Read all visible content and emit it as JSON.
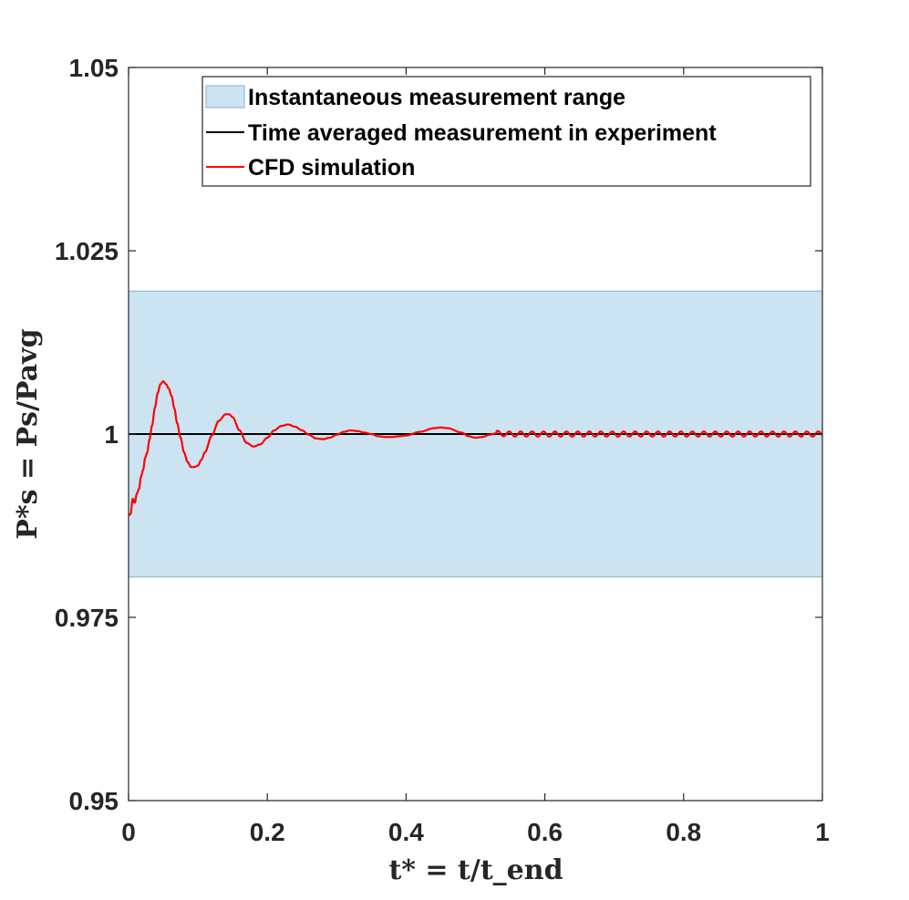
{
  "chart_data": {
    "type": "line",
    "xlabel": "t* = t/t_end",
    "ylabel": "P*s = Ps/Pavg",
    "xlim": [
      0,
      1
    ],
    "ylim": [
      0.95,
      1.05
    ],
    "x_ticks": [
      0,
      0.2,
      0.4,
      0.6,
      0.8,
      1
    ],
    "x_tick_labels": [
      "0",
      "0.2",
      "0.4",
      "0.6",
      "0.8",
      "1"
    ],
    "y_ticks": [
      0.95,
      0.975,
      1,
      1.025,
      1.05
    ],
    "y_tick_labels": [
      "0.95",
      "0.975",
      "1",
      "1.025",
      "1.05"
    ],
    "grid": false,
    "legend_position": "top-right",
    "measurement_band": {
      "name": "Instantaneous measurement range",
      "lower": 0.9805,
      "upper": 1.0195,
      "color": "#cce3f1",
      "edge_color": "#7fb2d6"
    },
    "series": [
      {
        "name": "Time averaged measurement in experiment",
        "color": "#000000",
        "x": [
          0,
          1
        ],
        "y": [
          1.0,
          1.0
        ]
      },
      {
        "name": "CFD simulation",
        "color": "#ff0000",
        "x": [
          0.0,
          0.003,
          0.006,
          0.009,
          0.012,
          0.015,
          0.018,
          0.021,
          0.024,
          0.027,
          0.03,
          0.034,
          0.038,
          0.042,
          0.046,
          0.05,
          0.054,
          0.058,
          0.062,
          0.066,
          0.07,
          0.075,
          0.08,
          0.085,
          0.09,
          0.095,
          0.1,
          0.105,
          0.11,
          0.12,
          0.13,
          0.14,
          0.145,
          0.15,
          0.16,
          0.17,
          0.18,
          0.19,
          0.2,
          0.21,
          0.22,
          0.23,
          0.24,
          0.25,
          0.26,
          0.27,
          0.28,
          0.29,
          0.3,
          0.31,
          0.32,
          0.33,
          0.34,
          0.35,
          0.36,
          0.37,
          0.38,
          0.39,
          0.4,
          0.42,
          0.44,
          0.45,
          0.46,
          0.48,
          0.49,
          0.5,
          0.51,
          0.52,
          0.53,
          0.55,
          0.6,
          0.65,
          0.7,
          0.75,
          0.8,
          0.85,
          0.9,
          0.95,
          1.0
        ],
        "y": [
          0.9889,
          0.9891,
          0.9912,
          0.9906,
          0.9919,
          0.9925,
          0.9942,
          0.9951,
          0.9968,
          0.9975,
          0.9992,
          1.0012,
          1.0036,
          1.0056,
          1.0068,
          1.0072,
          1.0068,
          1.0062,
          1.0052,
          1.0035,
          1.0015,
          0.9995,
          0.9975,
          0.9962,
          0.9955,
          0.9955,
          0.9957,
          0.9965,
          0.9975,
          0.9998,
          1.0018,
          1.0027,
          1.0027,
          1.0023,
          1.0005,
          0.9988,
          0.9983,
          0.9986,
          0.9995,
          1.0005,
          1.0011,
          1.0013,
          1.001,
          1.0005,
          0.9999,
          0.9994,
          0.9993,
          0.9995,
          0.9999,
          1.0003,
          1.0005,
          1.0004,
          1.0002,
          1.0,
          0.9997,
          0.9996,
          0.9996,
          0.9997,
          0.9998,
          1.0003,
          1.0008,
          1.0009,
          1.0008,
          1.0002,
          0.9997,
          0.9995,
          0.9996,
          0.9999,
          1.0001,
          1.0,
          1.0,
          1.0,
          1.0,
          1.0,
          1.0,
          1.0,
          1.0,
          1.0,
          1.0
        ]
      }
    ]
  }
}
